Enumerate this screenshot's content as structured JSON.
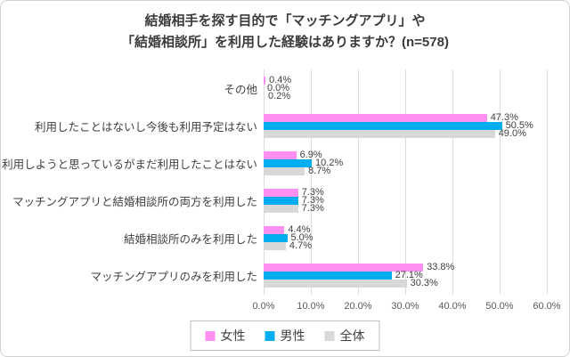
{
  "chart_data": {
    "type": "bar",
    "orientation": "horizontal",
    "title_lines": [
      "結婚相手を探す目的で「マッチングアプリ」や",
      "「結婚相談所」を利用した経験はありますか？(n=578)"
    ],
    "categories": [
      "その他",
      "利用したことはないし今後も利用予定はない",
      "利用しようと思っているがまだ利用したことはない",
      "マッチングアプリと結婚相談所の両方を利用した",
      "結婚相談所のみを利用した",
      "マッチングアプリのみを利用した"
    ],
    "series": [
      {
        "name": "女性",
        "color": "#ff90f2",
        "values": [
          0.4,
          47.3,
          6.9,
          7.3,
          4.4,
          33.8
        ]
      },
      {
        "name": "男性",
        "color": "#00aeef",
        "values": [
          0.0,
          50.5,
          10.2,
          7.3,
          5.0,
          27.1
        ]
      },
      {
        "name": "全体",
        "color": "#d8d8d8",
        "values": [
          0.2,
          49.0,
          8.7,
          7.3,
          4.7,
          30.3
        ]
      }
    ],
    "value_suffix": "%",
    "xlim": [
      0,
      60
    ],
    "x_ticks": [
      "0.0%",
      "10.0%",
      "20.0%",
      "30.0%",
      "40.0%",
      "50.0%",
      "60.0%"
    ],
    "grid": true,
    "legend_position": "bottom"
  }
}
